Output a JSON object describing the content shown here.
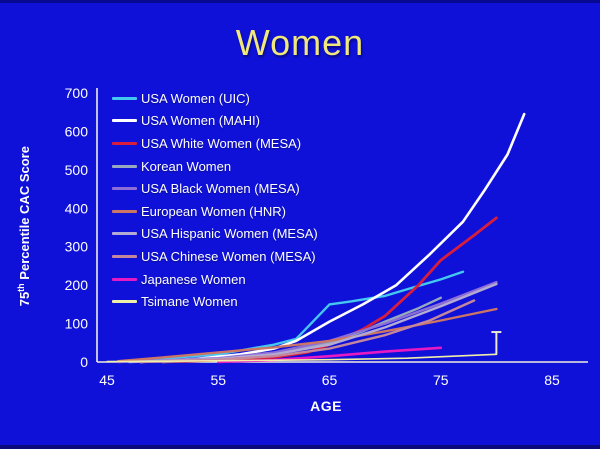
{
  "slide": {
    "title": "Women",
    "background_color": "#0f11d9",
    "title_color": "#f0e87c"
  },
  "chart_data": {
    "type": "line",
    "title": "Women",
    "xlabel": "AGE",
    "ylabel": "75th Percentile CAC Score",
    "ylabel_parts": {
      "base": "75",
      "sup": "th",
      "rest": " Percentile CAC Score"
    },
    "xlim": [
      45,
      85
    ],
    "ylim": [
      0,
      700
    ],
    "x_ticks": [
      45,
      55,
      65,
      75,
      85
    ],
    "y_ticks": [
      0,
      100,
      200,
      300,
      400,
      500,
      600,
      700
    ],
    "grid": false,
    "legend_position": "inside-top-left",
    "axis_color": "#efeddc",
    "tick_text_color": "#ffffff",
    "series": [
      {
        "name": "USA Women (UIC)",
        "color": "#45c8f0",
        "width": 2.4,
        "points": [
          [
            47,
            2
          ],
          [
            55,
            20
          ],
          [
            60,
            45
          ],
          [
            62,
            60
          ],
          [
            63,
            90
          ],
          [
            65,
            150
          ],
          [
            67,
            158
          ],
          [
            70,
            172
          ],
          [
            73,
            198
          ],
          [
            75,
            215
          ],
          [
            77,
            235
          ]
        ]
      },
      {
        "name": "USA Women (MAHI)",
        "color": "#ffffff",
        "width": 2.6,
        "points": [
          [
            48,
            0
          ],
          [
            53,
            8
          ],
          [
            57,
            20
          ],
          [
            60,
            35
          ],
          [
            62,
            55
          ],
          [
            65,
            105
          ],
          [
            68,
            150
          ],
          [
            71,
            200
          ],
          [
            74,
            280
          ],
          [
            77,
            365
          ],
          [
            79,
            450
          ],
          [
            81,
            540
          ],
          [
            82.5,
            645
          ]
        ]
      },
      {
        "name": "USA White Women (MESA)",
        "color": "#d81e3c",
        "width": 2.8,
        "points": [
          [
            50,
            0
          ],
          [
            55,
            5
          ],
          [
            60,
            12
          ],
          [
            63,
            25
          ],
          [
            65,
            45
          ],
          [
            68,
            85
          ],
          [
            70,
            120
          ],
          [
            73,
            200
          ],
          [
            75,
            265
          ],
          [
            78,
            330
          ],
          [
            80,
            375
          ]
        ]
      },
      {
        "name": "Korean Women",
        "color": "#97a8bf",
        "width": 2.4,
        "points": [
          [
            50,
            0
          ],
          [
            55,
            8
          ],
          [
            60,
            20
          ],
          [
            65,
            50
          ],
          [
            68,
            80
          ],
          [
            70,
            105
          ],
          [
            73,
            140
          ],
          [
            75,
            167
          ]
        ]
      },
      {
        "name": "USA Black Women (MESA)",
        "color": "#8d6ed6",
        "width": 2.4,
        "points": [
          [
            46,
            0
          ],
          [
            55,
            10
          ],
          [
            60,
            25
          ],
          [
            65,
            55
          ],
          [
            70,
            100
          ],
          [
            75,
            152
          ],
          [
            80,
            208
          ]
        ]
      },
      {
        "name": "European Women (HNR)",
        "color": "#cd7565",
        "width": 2.4,
        "points": [
          [
            46,
            2
          ],
          [
            50,
            12
          ],
          [
            55,
            25
          ],
          [
            60,
            38
          ],
          [
            65,
            55
          ],
          [
            70,
            80
          ],
          [
            75,
            108
          ],
          [
            80,
            138
          ]
        ]
      },
      {
        "name": "USA Hispanic Women (MESA)",
        "color": "#b3abd4",
        "width": 2.4,
        "points": [
          [
            47,
            0
          ],
          [
            55,
            8
          ],
          [
            60,
            20
          ],
          [
            65,
            45
          ],
          [
            70,
            90
          ],
          [
            75,
            145
          ],
          [
            80,
            203
          ]
        ]
      },
      {
        "name": "USA Chinese Women (MESA)",
        "color": "#c5879c",
        "width": 2.4,
        "points": [
          [
            48,
            0
          ],
          [
            55,
            6
          ],
          [
            60,
            15
          ],
          [
            65,
            35
          ],
          [
            70,
            70
          ],
          [
            74,
            108
          ],
          [
            78,
            160
          ]
        ]
      },
      {
        "name": "Japanese Women",
        "color": "#e619c3",
        "width": 2.6,
        "points": [
          [
            55,
            0
          ],
          [
            60,
            5
          ],
          [
            65,
            15
          ],
          [
            70,
            27
          ],
          [
            75,
            37
          ]
        ]
      },
      {
        "name": "Tsimane Women",
        "color": "#f0efa8",
        "width": 1.6,
        "points": [
          [
            45,
            1
          ],
          [
            55,
            3
          ],
          [
            65,
            6
          ],
          [
            72,
            10
          ],
          [
            80,
            20
          ]
        ]
      }
    ],
    "error_bar": {
      "series": "Tsimane Women",
      "x": 80,
      "low": 20,
      "high": 78,
      "color": "#e9e8cf"
    }
  }
}
